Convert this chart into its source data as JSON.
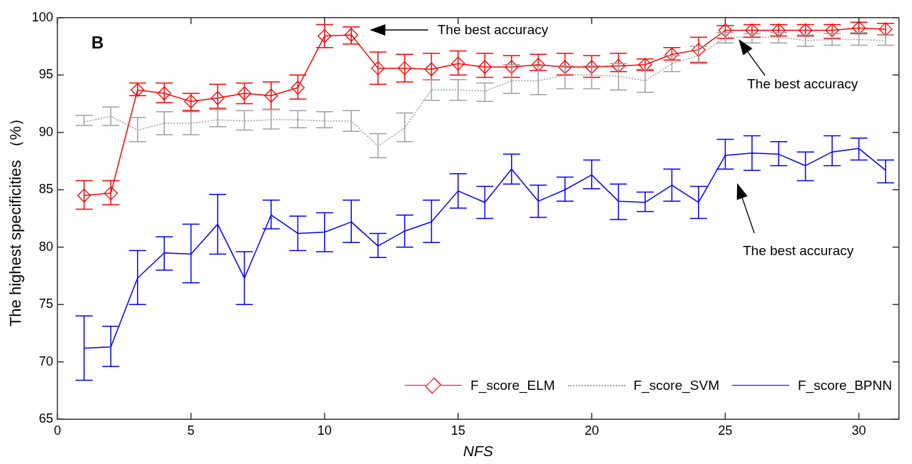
{
  "chart_data": {
    "type": "line",
    "title": "B",
    "xlabel": "NFS",
    "ylabel": "The highest specificities （%）",
    "xlim": [
      0,
      31.5
    ],
    "xticks": [
      0,
      5,
      10,
      15,
      20,
      25,
      30
    ],
    "ylim": [
      65,
      100
    ],
    "yticks": [
      65,
      70,
      75,
      80,
      85,
      90,
      95,
      100
    ],
    "grid": false,
    "legend": "bottom right",
    "x": [
      1,
      2,
      3,
      4,
      5,
      6,
      7,
      8,
      9,
      10,
      11,
      12,
      13,
      14,
      15,
      16,
      17,
      18,
      19,
      20,
      21,
      22,
      23,
      24,
      25,
      26,
      27,
      28,
      29,
      30,
      31
    ],
    "series": [
      {
        "name": "F_score_ELM",
        "color": "#ff0000",
        "marker": "diamond",
        "line_style": "solid",
        "values": [
          84.5,
          84.7,
          93.7,
          93.4,
          92.7,
          93.0,
          93.4,
          93.2,
          93.9,
          98.4,
          98.5,
          95.6,
          95.6,
          95.5,
          96.0,
          95.7,
          95.7,
          95.9,
          95.7,
          95.7,
          95.8,
          95.9,
          96.8,
          97.2,
          98.9,
          98.9,
          98.9,
          98.9,
          98.9,
          99.1,
          99.0
        ],
        "errors": [
          [
            83.3,
            85.8
          ],
          [
            83.7,
            85.8
          ],
          [
            93.2,
            94.3
          ],
          [
            92.6,
            94.3
          ],
          [
            91.9,
            93.4
          ],
          [
            92.1,
            94.2
          ],
          [
            92.5,
            94.3
          ],
          [
            92.0,
            94.4
          ],
          [
            92.9,
            95.0
          ],
          [
            97.4,
            99.4
          ],
          [
            97.7,
            99.2
          ],
          [
            94.2,
            97.0
          ],
          [
            94.4,
            96.8
          ],
          [
            94.6,
            96.9
          ],
          [
            95.0,
            97.1
          ],
          [
            94.8,
            96.9
          ],
          [
            94.8,
            96.7
          ],
          [
            95.4,
            96.8
          ],
          [
            95.0,
            96.9
          ],
          [
            94.8,
            96.7
          ],
          [
            95.3,
            96.9
          ],
          [
            95.4,
            96.4
          ],
          [
            96.3,
            97.4
          ],
          [
            96.1,
            98.3
          ],
          [
            98.2,
            99.3
          ],
          [
            98.3,
            99.4
          ],
          [
            98.4,
            99.4
          ],
          [
            98.4,
            99.4
          ],
          [
            98.2,
            99.4
          ],
          [
            98.6,
            99.6
          ],
          [
            98.5,
            99.5
          ]
        ]
      },
      {
        "name": "F_score_SVM",
        "color": "#a0a0a0",
        "marker": "none",
        "line_style": "dotted",
        "values": [
          90.9,
          91.4,
          90.2,
          90.8,
          90.8,
          91.1,
          91.0,
          91.1,
          91.1,
          91.0,
          91.0,
          88.8,
          90.4,
          93.7,
          93.7,
          93.6,
          94.5,
          94.5,
          95.0,
          95.0,
          94.9,
          94.5,
          96.0,
          96.7,
          98.3,
          98.3,
          98.3,
          98.0,
          98.1,
          98.1,
          98.0
        ],
        "errors": [
          [
            90.6,
            91.5
          ],
          [
            90.6,
            92.2
          ],
          [
            89.2,
            91.3
          ],
          [
            89.8,
            91.8
          ],
          [
            89.8,
            91.8
          ],
          [
            90.5,
            92.0
          ],
          [
            90.2,
            91.9
          ],
          [
            90.3,
            92.0
          ],
          [
            90.4,
            91.9
          ],
          [
            90.4,
            91.8
          ],
          [
            90.1,
            91.9
          ],
          [
            87.8,
            89.9
          ],
          [
            89.2,
            91.7
          ],
          [
            92.8,
            94.6
          ],
          [
            92.8,
            94.6
          ],
          [
            92.7,
            94.3
          ],
          [
            93.4,
            95.9
          ],
          [
            93.3,
            95.8
          ],
          [
            93.8,
            95.8
          ],
          [
            93.8,
            95.8
          ],
          [
            93.7,
            96.0
          ],
          [
            93.5,
            95.5
          ],
          [
            95.3,
            96.7
          ],
          [
            96.0,
            97.5
          ],
          [
            97.8,
            98.7
          ],
          [
            97.8,
            98.6
          ],
          [
            97.8,
            98.7
          ],
          [
            97.5,
            98.5
          ],
          [
            97.6,
            98.6
          ],
          [
            97.6,
            98.7
          ],
          [
            97.6,
            98.5
          ]
        ]
      },
      {
        "name": "F_score_BPNN",
        "color": "#0000ff",
        "marker": "none",
        "line_style": "solid",
        "values": [
          71.2,
          71.3,
          77.3,
          79.5,
          79.4,
          82.0,
          77.3,
          82.8,
          81.2,
          81.3,
          82.2,
          80.1,
          81.4,
          82.2,
          84.9,
          83.9,
          86.8,
          84.0,
          85.0,
          86.3,
          84.0,
          83.9,
          85.4,
          83.9,
          88.0,
          88.2,
          88.1,
          87.1,
          88.3,
          88.6,
          86.7
        ],
        "errors": [
          [
            68.4,
            74.0
          ],
          [
            69.6,
            73.1
          ],
          [
            75.0,
            79.7
          ],
          [
            78.0,
            80.9
          ],
          [
            76.9,
            82.0
          ],
          [
            79.4,
            84.6
          ],
          [
            75.0,
            79.6
          ],
          [
            81.6,
            84.1
          ],
          [
            79.7,
            82.7
          ],
          [
            79.6,
            83.0
          ],
          [
            80.4,
            84.1
          ],
          [
            79.1,
            81.2
          ],
          [
            80.0,
            82.8
          ],
          [
            80.4,
            84.1
          ],
          [
            83.4,
            86.4
          ],
          [
            82.5,
            85.3
          ],
          [
            85.5,
            88.1
          ],
          [
            82.6,
            85.4
          ],
          [
            84.0,
            86.1
          ],
          [
            85.1,
            87.6
          ],
          [
            82.4,
            85.5
          ],
          [
            83.1,
            84.8
          ],
          [
            84.0,
            86.8
          ],
          [
            82.5,
            85.3
          ],
          [
            86.8,
            89.4
          ],
          [
            86.7,
            89.7
          ],
          [
            87.1,
            89.2
          ],
          [
            85.8,
            88.3
          ],
          [
            87.1,
            89.7
          ],
          [
            87.6,
            89.5
          ],
          [
            85.6,
            87.6
          ]
        ]
      }
    ],
    "annotations": [
      "The best accuracy",
      "The best accuracy",
      "The best accuracy"
    ]
  }
}
